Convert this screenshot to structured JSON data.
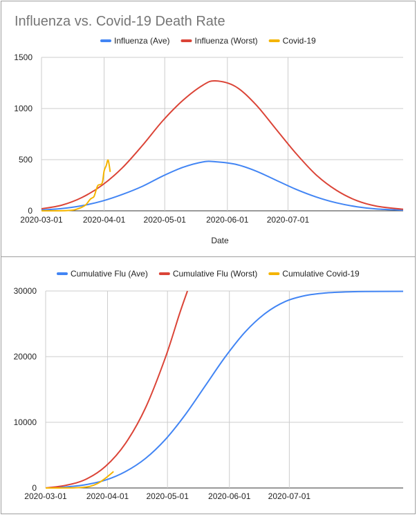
{
  "colors": {
    "blue": "#4285f4",
    "red": "#db4437",
    "yellow": "#f4b400",
    "grid": "#cccccc",
    "axis": "#333333",
    "title": "#757575",
    "text": "#222222"
  },
  "chart_data": [
    {
      "type": "line",
      "title": "Influenza vs. Covid-19 Death Rate",
      "xlabel": "Date",
      "ylabel": "",
      "x_ticks": [
        "2020-03-01",
        "2020-04-01",
        "2020-05-01",
        "2020-06-01",
        "2020-07-01"
      ],
      "y_ticks": [
        0,
        500,
        1000,
        1500
      ],
      "xlim": [
        "2020-03-01",
        "2020-08-27"
      ],
      "ylim": [
        0,
        1500
      ],
      "legend_position": "top",
      "grid": true,
      "series": [
        {
          "name": "Influenza (Ave)",
          "color": "blue",
          "points": [
            [
              "2020-03-01",
              8
            ],
            [
              "2020-03-11",
              22
            ],
            [
              "2020-03-21",
              50
            ],
            [
              "2020-03-31",
              95
            ],
            [
              "2020-04-10",
              160
            ],
            [
              "2020-04-20",
              240
            ],
            [
              "2020-04-30",
              340
            ],
            [
              "2020-05-10",
              425
            ],
            [
              "2020-05-20",
              478
            ],
            [
              "2020-05-26",
              480
            ],
            [
              "2020-06-05",
              455
            ],
            [
              "2020-06-15",
              390
            ],
            [
              "2020-06-25",
              300
            ],
            [
              "2020-07-05",
              210
            ],
            [
              "2020-07-15",
              135
            ],
            [
              "2020-07-25",
              78
            ],
            [
              "2020-08-04",
              40
            ],
            [
              "2020-08-14",
              18
            ],
            [
              "2020-08-27",
              7
            ]
          ]
        },
        {
          "name": "Influenza (Worst)",
          "color": "red",
          "points": [
            [
              "2020-03-01",
              20
            ],
            [
              "2020-03-11",
              55
            ],
            [
              "2020-03-21",
              130
            ],
            [
              "2020-03-31",
              250
            ],
            [
              "2020-04-10",
              420
            ],
            [
              "2020-04-20",
              640
            ],
            [
              "2020-04-30",
              880
            ],
            [
              "2020-05-10",
              1080
            ],
            [
              "2020-05-20",
              1230
            ],
            [
              "2020-05-26",
              1270
            ],
            [
              "2020-06-05",
              1215
            ],
            [
              "2020-06-15",
              1040
            ],
            [
              "2020-06-25",
              800
            ],
            [
              "2020-07-05",
              560
            ],
            [
              "2020-07-15",
              350
            ],
            [
              "2020-07-25",
              200
            ],
            [
              "2020-08-04",
              100
            ],
            [
              "2020-08-14",
              45
            ],
            [
              "2020-08-27",
              15
            ]
          ]
        },
        {
          "name": "Covid-19",
          "color": "yellow",
          "points": [
            [
              "2020-03-01",
              0
            ],
            [
              "2020-03-08",
              0
            ],
            [
              "2020-03-13",
              2
            ],
            [
              "2020-03-17",
              8
            ],
            [
              "2020-03-19",
              20
            ],
            [
              "2020-03-21",
              35
            ],
            [
              "2020-03-23",
              60
            ],
            [
              "2020-03-25",
              110
            ],
            [
              "2020-03-26",
              125
            ],
            [
              "2020-03-27",
              140
            ],
            [
              "2020-03-28",
              200
            ],
            [
              "2020-03-29",
              250
            ],
            [
              "2020-03-31",
              270
            ],
            [
              "2020-04-01",
              390
            ],
            [
              "2020-04-02",
              440
            ],
            [
              "2020-04-03",
              495
            ],
            [
              "2020-04-04",
              380
            ]
          ]
        }
      ]
    },
    {
      "type": "line",
      "title": "",
      "xlabel": "",
      "ylabel": "",
      "x_ticks": [
        "2020-03-01",
        "2020-04-01",
        "2020-05-01",
        "2020-06-01",
        "2020-07-01"
      ],
      "y_ticks": [
        0,
        10000,
        20000,
        30000
      ],
      "xlim": [
        "2020-03-01",
        "2020-08-27"
      ],
      "ylim": [
        0,
        30000
      ],
      "legend_position": "top",
      "grid": true,
      "series": [
        {
          "name": "Cumulative Flu (Ave)",
          "color": "blue",
          "points": [
            [
              "2020-03-01",
              0
            ],
            [
              "2020-03-11",
              150
            ],
            [
              "2020-03-21",
              500
            ],
            [
              "2020-03-31",
              1200
            ],
            [
              "2020-04-10",
              2500
            ],
            [
              "2020-04-20",
              4500
            ],
            [
              "2020-04-30",
              7400
            ],
            [
              "2020-05-10",
              11200
            ],
            [
              "2020-05-20",
              15600
            ],
            [
              "2020-05-30",
              20000
            ],
            [
              "2020-06-09",
              23800
            ],
            [
              "2020-06-19",
              26600
            ],
            [
              "2020-06-29",
              28400
            ],
            [
              "2020-07-09",
              29300
            ],
            [
              "2020-07-19",
              29700
            ],
            [
              "2020-07-29",
              29850
            ],
            [
              "2020-08-08",
              29920
            ],
            [
              "2020-08-27",
              29950
            ]
          ]
        },
        {
          "name": "Cumulative Flu (Worst)",
          "color": "red",
          "points": [
            [
              "2020-03-01",
              0
            ],
            [
              "2020-03-11",
              400
            ],
            [
              "2020-03-21",
              1300
            ],
            [
              "2020-03-31",
              3300
            ],
            [
              "2020-04-10",
              6800
            ],
            [
              "2020-04-20",
              12200
            ],
            [
              "2020-04-30",
              19900
            ],
            [
              "2020-05-07",
              26500
            ],
            [
              "2020-05-11",
              30000
            ]
          ]
        },
        {
          "name": "Cumulative Covid-19",
          "color": "yellow",
          "points": [
            [
              "2020-03-01",
              0
            ],
            [
              "2020-03-13",
              10
            ],
            [
              "2020-03-19",
              80
            ],
            [
              "2020-03-23",
              230
            ],
            [
              "2020-03-27",
              680
            ],
            [
              "2020-03-31",
              1500
            ],
            [
              "2020-04-04",
              2500
            ]
          ]
        }
      ]
    }
  ]
}
